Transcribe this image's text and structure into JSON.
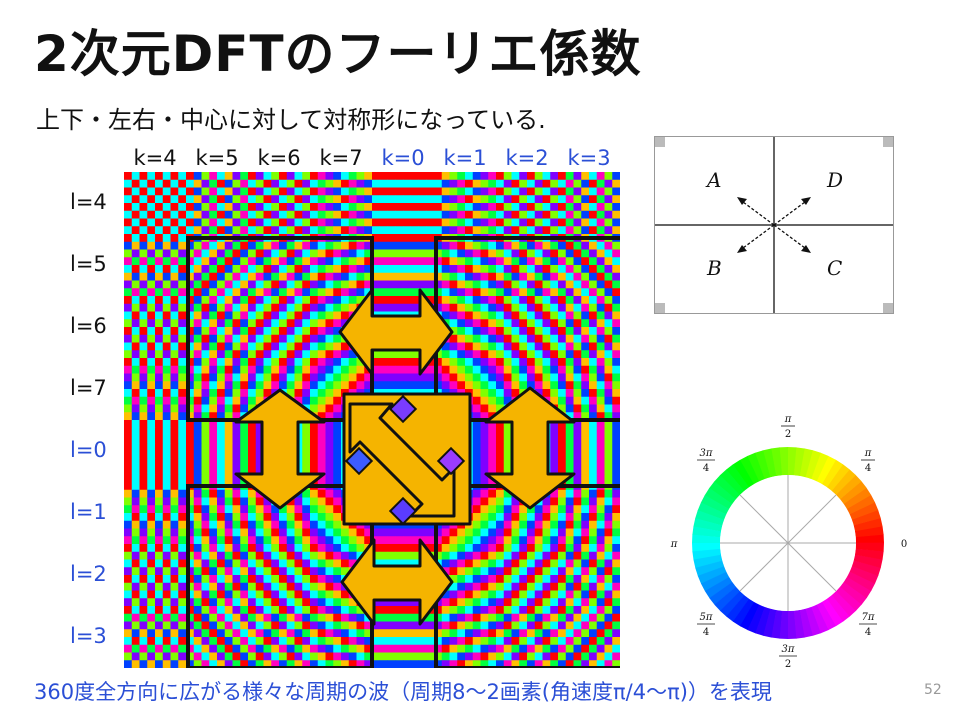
{
  "slide": {
    "title": "2次元DFTのフーリエ係数",
    "subtitle": "上下・左右・中心に対して対称形になっている.",
    "caption": "360度全方向に広がる様々な周期の波（周期8〜2画素(角速度π/4〜π)）を表現",
    "page_number": "52"
  },
  "grid": {
    "k_labels": [
      "k=4",
      "k=5",
      "k=6",
      "k=7",
      "k=0",
      "k=1",
      "k=2",
      "k=3"
    ],
    "l_labels": [
      "l=4",
      "l=5",
      "l=6",
      "l=7",
      "l=0",
      "l=1",
      "l=2",
      "l=3"
    ],
    "highlight_color": "#2b4fd6",
    "arrow_color": "#f5b400"
  },
  "quadrant_legend": {
    "A": "A",
    "B": "B",
    "C": "C",
    "D": "D"
  },
  "phase_wheel": {
    "labels": {
      "zero": "0",
      "pi": "π",
      "pi_half": [
        "π",
        "2"
      ],
      "three_pi_half": [
        "3π",
        "2"
      ],
      "pi_quarter": [
        "π",
        "4"
      ],
      "three_pi_quarter": [
        "3π",
        "4"
      ],
      "five_pi_quarter": [
        "5π",
        "4"
      ],
      "seven_pi_quarter": [
        "7π",
        "4"
      ]
    }
  }
}
